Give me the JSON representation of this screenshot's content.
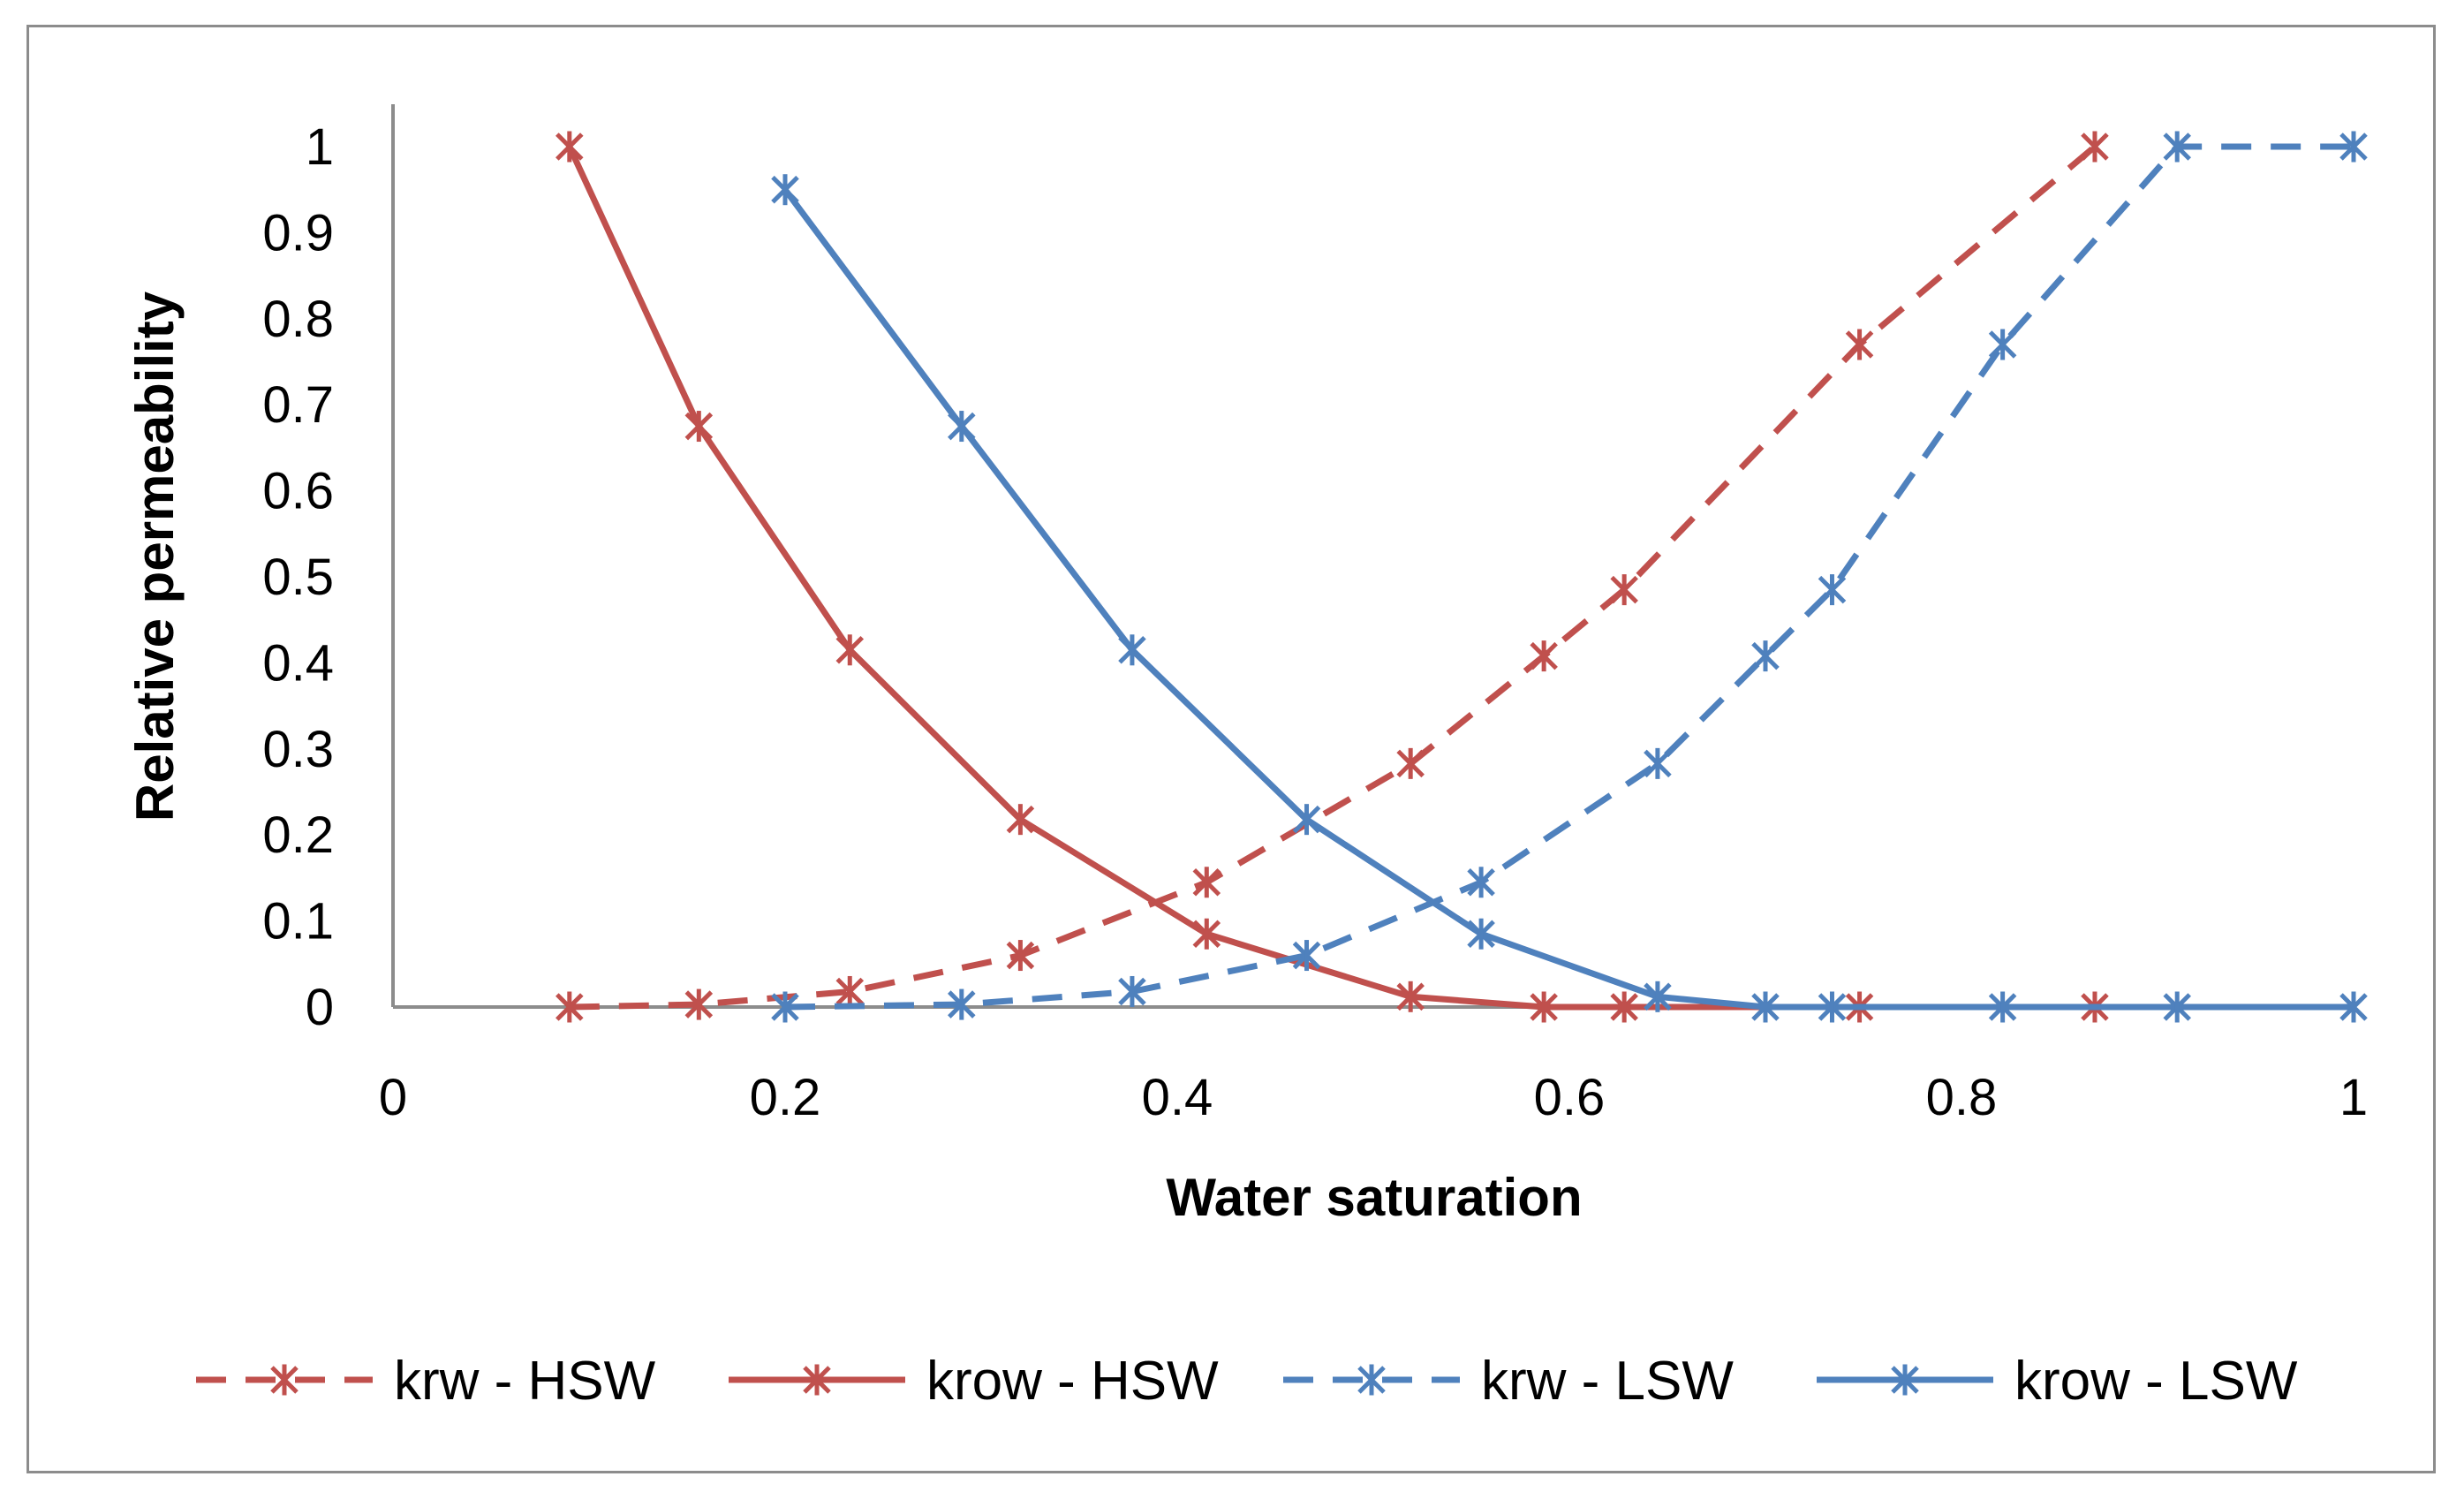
{
  "chart_data": {
    "type": "line",
    "title": "",
    "xlabel": "Water saturation",
    "ylabel": "Relative permeability",
    "xlim": [
      0,
      1
    ],
    "ylim": [
      0,
      1
    ],
    "xticks": [
      "0",
      "0.2",
      "0.4",
      "0.6",
      "0.8",
      "1"
    ],
    "yticks": [
      "0",
      "0.1",
      "0.2",
      "0.3",
      "0.4",
      "0.5",
      "0.6",
      "0.7",
      "0.8",
      "0.9",
      "1"
    ],
    "xtick_values": [
      0,
      0.2,
      0.4,
      0.6,
      0.8,
      1
    ],
    "ytick_values": [
      0,
      0.1,
      0.2,
      0.3,
      0.4,
      0.5,
      0.6,
      0.7,
      0.8,
      0.9,
      1
    ],
    "grid": false,
    "legend_position": "bottom",
    "series": [
      {
        "name": "krw - HSW",
        "color": "#c0504d",
        "dash": "dashed",
        "marker": "star",
        "x": [
          0.09,
          0.156,
          0.233,
          0.32,
          0.415,
          0.519,
          0.587,
          0.628,
          0.748,
          0.868
        ],
        "y": [
          0,
          0.003,
          0.018,
          0.06,
          0.145,
          0.283,
          0.408,
          0.485,
          0.77,
          1.0
        ]
      },
      {
        "name": "krow - HSW",
        "color": "#c0504d",
        "dash": "solid",
        "marker": "star",
        "x": [
          0.09,
          0.156,
          0.233,
          0.32,
          0.415,
          0.519,
          0.587,
          0.628,
          0.748,
          0.868
        ],
        "y": [
          1.0,
          0.675,
          0.415,
          0.218,
          0.085,
          0.012,
          0.0,
          0.0,
          0.0,
          0.0
        ]
      },
      {
        "name": "krw - LSW",
        "color": "#4f81bd",
        "dash": "dashed",
        "marker": "star",
        "x": [
          0.2,
          0.29,
          0.377,
          0.466,
          0.555,
          0.645,
          0.7,
          0.734,
          0.821,
          0.91,
          1.0
        ],
        "y": [
          0,
          0.003,
          0.018,
          0.06,
          0.145,
          0.283,
          0.408,
          0.485,
          0.77,
          1.0,
          1.0
        ]
      },
      {
        "name": "krow - LSW",
        "color": "#4f81bd",
        "dash": "solid",
        "marker": "star",
        "x": [
          0.2,
          0.29,
          0.377,
          0.466,
          0.555,
          0.645,
          0.7,
          0.734,
          0.821,
          0.91,
          1.0
        ],
        "y": [
          0.95,
          0.675,
          0.415,
          0.218,
          0.085,
          0.012,
          0.0,
          0.0,
          0.0,
          0.0,
          0.0
        ]
      }
    ]
  }
}
